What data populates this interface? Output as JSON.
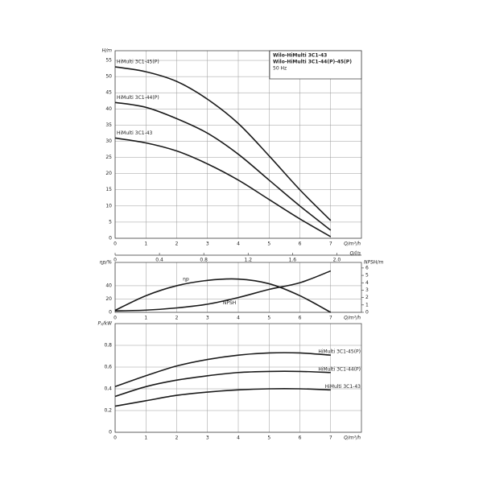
{
  "chart_data": [
    {
      "type": "line",
      "title": [
        "Wilo-HiMulti 3C1-43",
        "Wilo-HiMulti 3C1-44(P)-45(P)"
      ],
      "subtitle": "50 Hz",
      "y_label": "H/m",
      "x_label": "Q/m³/h",
      "x2_label": "Q/l/s",
      "x": [
        0,
        1,
        2,
        3,
        4,
        5,
        6,
        7
      ],
      "xlim": [
        0,
        8
      ],
      "xticks": [
        0,
        1,
        2,
        3,
        4,
        5,
        6,
        7
      ],
      "x2lim": [
        0,
        2.222
      ],
      "x2ticks": [
        0,
        {
          "value": 0.4,
          "label": "0.4"
        },
        {
          "value": 0.8,
          "label": "0.8"
        },
        {
          "value": 1.2,
          "label": "1.2"
        },
        {
          "value": 1.6,
          "label": "1.6"
        },
        {
          "value": 2.0,
          "label": "2.0"
        }
      ],
      "ylim": [
        0,
        58
      ],
      "yticks": [
        0,
        5,
        10,
        15,
        20,
        25,
        30,
        35,
        40,
        45,
        50,
        55
      ],
      "grid": true,
      "series_label_position": "start",
      "series": [
        {
          "name": "HiMulti 3C1-45(P)",
          "color": "#1a1a1a",
          "values": [
            53,
            51.5,
            48.5,
            43,
            35.5,
            25.5,
            15,
            5.5
          ]
        },
        {
          "name": "HiMulti 3C1-44(P)",
          "color": "#1a1a1a",
          "values": [
            42,
            40.5,
            37,
            32.5,
            26,
            18,
            10,
            2.5
          ]
        },
        {
          "name": "HiMulti 3C1-43",
          "color": "#1a1a1a",
          "values": [
            31,
            29.5,
            27,
            23,
            18,
            12,
            6,
            0.5
          ]
        }
      ]
    },
    {
      "type": "line",
      "y_label": "ηp/%",
      "y2_label": "NPSH/m",
      "x_label": "Q/m³/h",
      "x": [
        0,
        1,
        2,
        3,
        4,
        5,
        6,
        7
      ],
      "xlim": [
        0,
        8
      ],
      "xticks": [
        0,
        1,
        2,
        3,
        4,
        5,
        6,
        7
      ],
      "ylim": [
        0,
        75
      ],
      "yticks": [
        0,
        20,
        40
      ],
      "y2lim": [
        0,
        6.75
      ],
      "y2ticks": [
        0,
        1,
        2,
        3,
        4,
        5,
        6
      ],
      "grid": true,
      "series_label_position": "inline",
      "series": [
        {
          "name": "ηp",
          "color": "#1a1a1a",
          "values": [
            3,
            25,
            40,
            48,
            50,
            43,
            25,
            0
          ]
        },
        {
          "name": "NPSH",
          "color": "#1a1a1a",
          "axis": "y2",
          "values": [
            0.2,
            0.3,
            0.6,
            1.1,
            2.0,
            3.1,
            4.0,
            5.6
          ]
        }
      ]
    },
    {
      "type": "line",
      "y_label": "P₂/kW",
      "x_label": "Q/m³/h",
      "x": [
        0,
        1,
        2,
        3,
        4,
        5,
        6,
        7
      ],
      "xlim": [
        0,
        8
      ],
      "xticks": [
        0,
        1,
        2,
        3,
        4,
        5,
        6,
        7
      ],
      "ylim": [
        0,
        1.0
      ],
      "yticks": [
        0,
        {
          "value": 0.2,
          "label": "0,2"
        },
        {
          "value": 0.4,
          "label": "0,4"
        },
        {
          "value": 0.6,
          "label": "0,6"
        },
        {
          "value": 0.8,
          "label": "0,8"
        }
      ],
      "grid": true,
      "series_label_position": "end",
      "series": [
        {
          "name": "HiMulti 3C1-45(P)",
          "color": "#1a1a1a",
          "values": [
            0.42,
            0.52,
            0.61,
            0.67,
            0.71,
            0.73,
            0.73,
            0.71
          ]
        },
        {
          "name": "HiMulti 3C1-44(P)",
          "color": "#1a1a1a",
          "values": [
            0.33,
            0.42,
            0.48,
            0.52,
            0.55,
            0.56,
            0.56,
            0.55
          ]
        },
        {
          "name": "HiMulti 3C1-43",
          "color": "#1a1a1a",
          "values": [
            0.24,
            0.29,
            0.34,
            0.37,
            0.39,
            0.4,
            0.4,
            0.39
          ]
        }
      ]
    }
  ]
}
